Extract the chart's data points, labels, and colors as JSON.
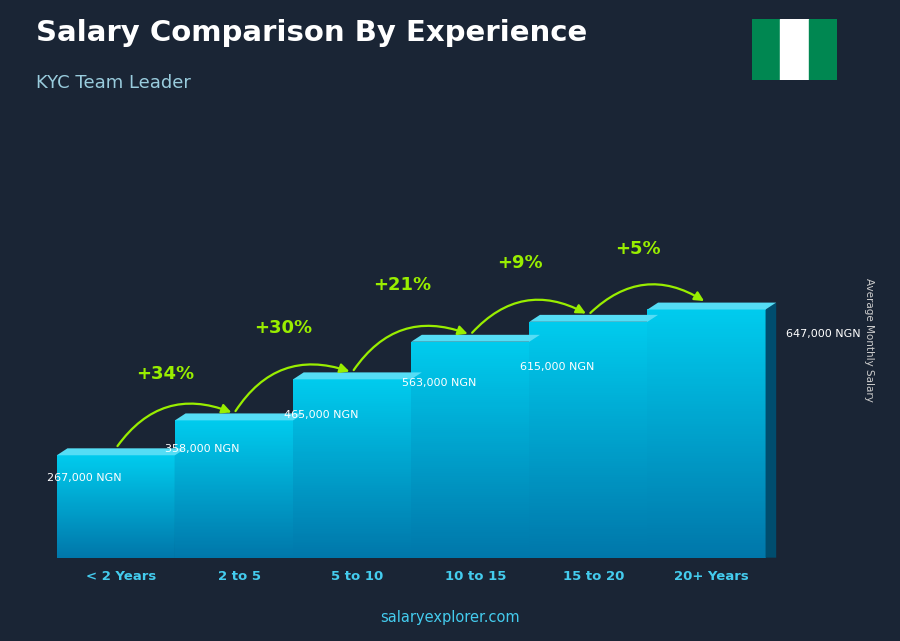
{
  "title": "Salary Comparison By Experience",
  "subtitle": "KYC Team Leader",
  "ylabel": "Average Monthly Salary",
  "watermark": "salaryexplorer.com",
  "categories": [
    "< 2 Years",
    "2 to 5",
    "5 to 10",
    "10 to 15",
    "15 to 20",
    "20+ Years"
  ],
  "values": [
    267000,
    358000,
    465000,
    563000,
    615000,
    647000
  ],
  "pct_changes": [
    "+34%",
    "+30%",
    "+21%",
    "+9%",
    "+5%"
  ],
  "bar_face_top": "#00d4f0",
  "bar_face_bottom": "#0077aa",
  "bar_side_color": "#005080",
  "bar_top_color": "#66eeff",
  "bg_color": "#1a2535",
  "title_color": "#ffffff",
  "subtitle_color": "#99ccdd",
  "pct_color": "#99ee00",
  "tick_color": "#44ccee",
  "salary_color": "#ffffff",
  "ylabel_color": "#cccccc",
  "watermark_color": "#44ccee",
  "nigeria_green": "#008751",
  "nigeria_white": "#ffffff",
  "arrow_color": "#99ee00"
}
